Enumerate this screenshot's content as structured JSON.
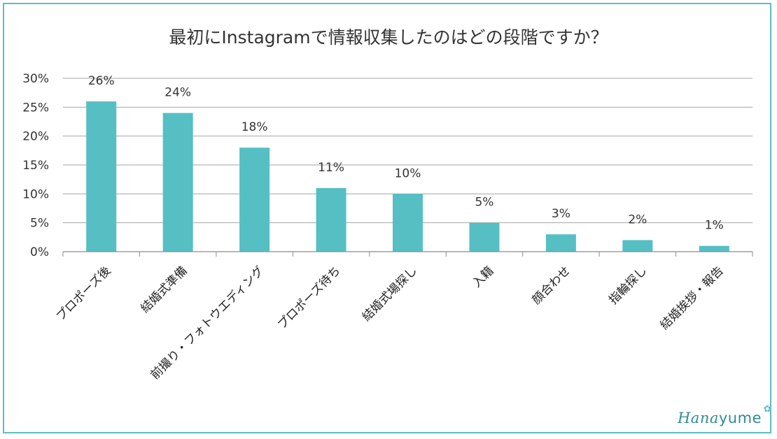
{
  "chart_data": {
    "type": "bar",
    "title": "最初にInstagramで情報収集したのはどの段階ですか？",
    "categories": [
      "プロポーズ後",
      "結婚式準備",
      "前撮り・フォトウエディング",
      "プロポーズ待ち",
      "結婚式場探し",
      "入籍",
      "顔合わせ",
      "指輪探し",
      "結婚挨拶・報告"
    ],
    "values": [
      26,
      24,
      18,
      11,
      10,
      5,
      3,
      2,
      1
    ],
    "data_labels": [
      "26%",
      "24%",
      "18%",
      "11%",
      "10%",
      "5%",
      "3%",
      "2%",
      "1%"
    ],
    "ylim": [
      0,
      30
    ],
    "yticks": [
      "0%",
      "5%",
      "10%",
      "15%",
      "20%",
      "25%",
      "30%"
    ],
    "grid": true,
    "bar_color": "#55bfc4",
    "xlabel": "",
    "ylabel": ""
  },
  "brand": {
    "name": "Hanayume",
    "name_part1": "Hana",
    "name_part2": "yume",
    "flower_icon": "flower-icon",
    "color": "#2f8c96"
  }
}
